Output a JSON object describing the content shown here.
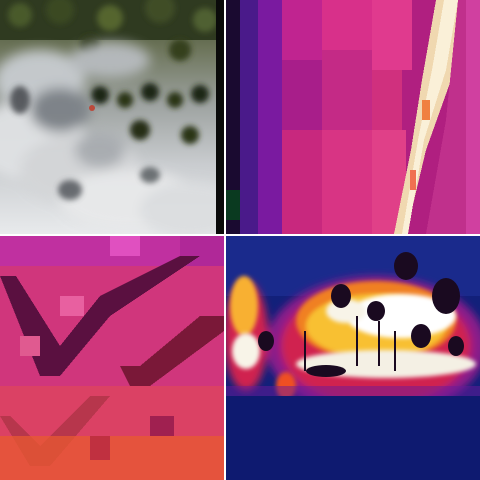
{
  "tiles": [
    {
      "id": "top-left",
      "kind": "visible-smoke-forest"
    },
    {
      "id": "top-right",
      "kind": "thermal-closeup"
    },
    {
      "id": "bottom-left",
      "kind": "thermal-zoomed"
    },
    {
      "id": "bottom-right",
      "kind": "thermal-wide-fire"
    }
  ],
  "colors": {
    "divider": "#ffffff",
    "thermal_cold": "#12207a",
    "thermal_mid": "#c02090",
    "thermal_hot": "#f5f0e0",
    "smoke": "#d8dadc",
    "canopy": "#2f3a20"
  }
}
